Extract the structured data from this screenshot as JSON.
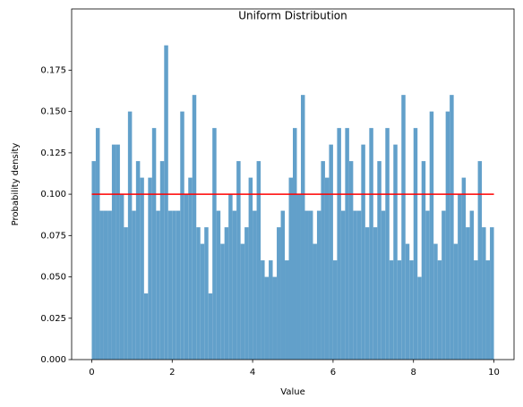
{
  "chart_data": {
    "type": "histogram",
    "title": "Uniform Distribution",
    "x_label": "Value",
    "y_label": "Probability density",
    "bins": [
      0,
      0.1,
      0.2,
      0.3,
      0.4,
      0.5,
      0.6,
      0.7,
      0.8,
      0.9,
      1,
      1.1,
      1.2,
      1.3,
      1.4,
      1.5,
      1.6,
      1.7,
      1.8,
      1.9,
      2,
      2.1,
      2.2,
      2.3,
      2.4,
      2.5,
      2.6,
      2.7,
      2.8,
      2.9,
      3,
      3.1,
      3.2,
      3.3,
      3.4,
      3.5,
      3.6,
      3.7,
      3.8,
      3.9,
      4,
      4.1,
      4.2,
      4.3,
      4.4,
      4.5,
      4.6,
      4.7,
      4.8,
      4.9,
      5,
      5.1,
      5.2,
      5.3,
      5.4,
      5.5,
      5.6,
      5.7,
      5.8,
      5.9,
      6,
      6.1,
      6.2,
      6.3,
      6.4,
      6.5,
      6.6,
      6.7,
      6.8,
      6.9,
      7,
      7.1,
      7.2,
      7.3,
      7.4,
      7.5,
      7.6,
      7.7,
      7.8,
      7.9,
      8,
      8.1,
      8.2,
      8.3,
      8.4,
      8.5,
      8.6,
      8.7,
      8.8,
      8.9,
      9,
      9.1,
      9.2,
      9.3,
      9.4,
      9.5,
      9.6,
      9.7,
      9.8,
      9.9,
      10
    ],
    "values": [
      0.12,
      0.14,
      0.09,
      0.09,
      0.09,
      0.13,
      0.13,
      0.1,
      0.08,
      0.15,
      0.09,
      0.12,
      0.11,
      0.04,
      0.11,
      0.14,
      0.09,
      0.12,
      0.19,
      0.09,
      0.09,
      0.09,
      0.15,
      0.1,
      0.11,
      0.16,
      0.08,
      0.07,
      0.08,
      0.04,
      0.14,
      0.09,
      0.07,
      0.08,
      0.1,
      0.09,
      0.12,
      0.07,
      0.08,
      0.11,
      0.09,
      0.12,
      0.06,
      0.05,
      0.06,
      0.05,
      0.08,
      0.09,
      0.06,
      0.11,
      0.14,
      0.1,
      0.16,
      0.09,
      0.09,
      0.07,
      0.09,
      0.12,
      0.11,
      0.13,
      0.06,
      0.14,
      0.09,
      0.14,
      0.12,
      0.09,
      0.09,
      0.13,
      0.08,
      0.14,
      0.08,
      0.12,
      0.09,
      0.14,
      0.06,
      0.13,
      0.06,
      0.16,
      0.07,
      0.06,
      0.14,
      0.05,
      0.12,
      0.09,
      0.15,
      0.07,
      0.06,
      0.09,
      0.15,
      0.16,
      0.07,
      0.1,
      0.11,
      0.08,
      0.09,
      0.06,
      0.12,
      0.08,
      0.06,
      0.08
    ],
    "color": "#62a0ca",
    "line": {
      "x": [
        0,
        10
      ],
      "values": [
        0.1,
        0.1
      ],
      "color": "#ff0000"
    },
    "xlim": [
      -0.5,
      10.5
    ],
    "ylim": [
      0,
      0.212
    ],
    "xticks": [
      0,
      2,
      4,
      6,
      8,
      10
    ],
    "yticks": [
      {
        "value": 0,
        "label": "0.000"
      },
      {
        "value": 0.025,
        "label": "0.025"
      },
      {
        "value": 0.05,
        "label": "0.050"
      },
      {
        "value": 0.075,
        "label": "0.075"
      },
      {
        "value": 0.1,
        "label": "0.100"
      },
      {
        "value": 0.125,
        "label": "0.125"
      },
      {
        "value": 0.15,
        "label": "0.150"
      },
      {
        "value": 0.175,
        "label": "0.175"
      }
    ]
  }
}
